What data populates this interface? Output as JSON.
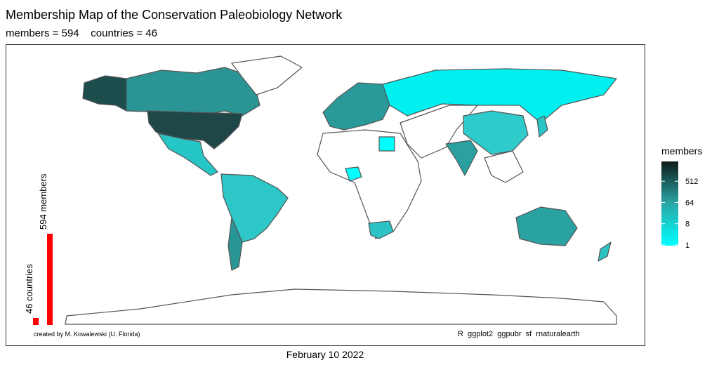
{
  "title": "Membership  Map of the Conservation Paleobiology Network",
  "subtitle": "members = 594    countries = 46",
  "bars": {
    "color": "#ff0000",
    "items": [
      {
        "label": "46 countries",
        "value": 46
      },
      {
        "label": "594 members",
        "value": 594
      }
    ]
  },
  "legend": {
    "title": "members",
    "log_scale": true,
    "lim": [
      1,
      594
    ],
    "ticks": [
      1,
      8,
      64,
      512
    ],
    "colors": [
      "#00ffff",
      "#0e1c1c"
    ]
  },
  "credit": "created by M. Kowalewski (U. Florida)",
  "software": "R  ggplot2  ggpubr  sf  rnaturalearth",
  "date": "February 10 2022"
}
